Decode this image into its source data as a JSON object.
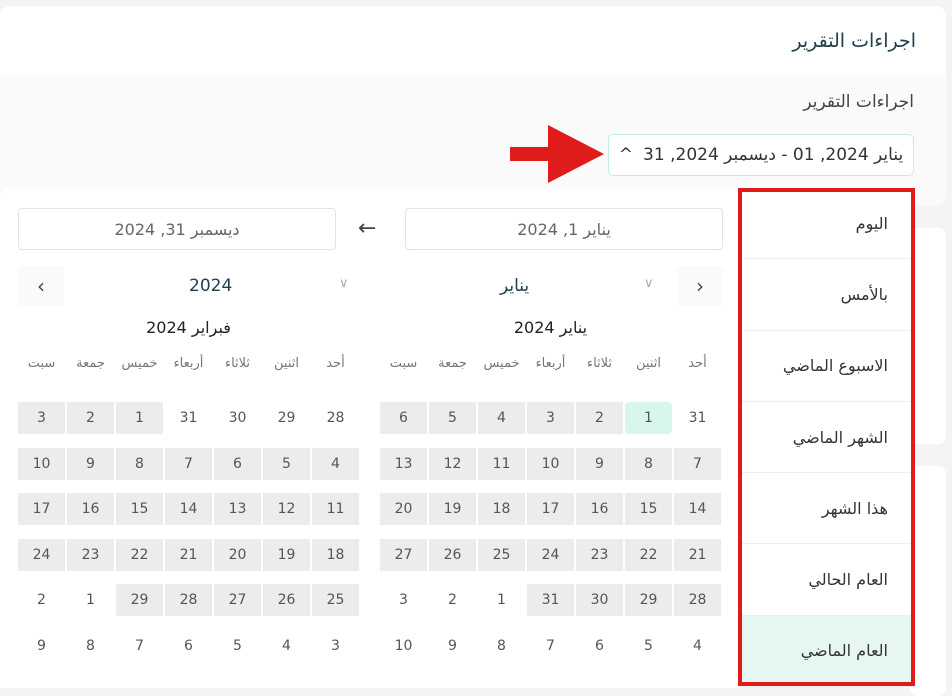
{
  "header": {
    "title": "اجراءات التقرير"
  },
  "filter": {
    "label": "اجراءات التقرير",
    "range_value": "يناير 2024, 01 - ديسمبر 2024, 31",
    "chevron_icon": "chevron-up-icon"
  },
  "annotation": {
    "arrow_color": "#e01b1b",
    "box_color": "#e01b1b"
  },
  "picker": {
    "start_input": "يناير 1, 2024",
    "end_input": "ديسمبر 31, 2024",
    "month_select": "يناير",
    "year_select": "2024",
    "weekdays": [
      "أحد",
      "اثنين",
      "ثلاثاء",
      "أربعاء",
      "خميس",
      "جمعة",
      "سبت"
    ],
    "calendars": [
      {
        "title": "يناير 2024",
        "weeks": [
          [
            {
              "d": "31",
              "s": ""
            },
            {
              "d": "1",
              "s": "selected"
            },
            {
              "d": "2",
              "s": "in"
            },
            {
              "d": "3",
              "s": "in"
            },
            {
              "d": "4",
              "s": "in"
            },
            {
              "d": "5",
              "s": "in"
            },
            {
              "d": "6",
              "s": "in"
            }
          ],
          [
            {
              "d": "7",
              "s": "in"
            },
            {
              "d": "8",
              "s": "in"
            },
            {
              "d": "9",
              "s": "in"
            },
            {
              "d": "10",
              "s": "in"
            },
            {
              "d": "11",
              "s": "in"
            },
            {
              "d": "12",
              "s": "in"
            },
            {
              "d": "13",
              "s": "in"
            }
          ],
          [
            {
              "d": "14",
              "s": "in"
            },
            {
              "d": "15",
              "s": "in"
            },
            {
              "d": "16",
              "s": "in"
            },
            {
              "d": "17",
              "s": "in"
            },
            {
              "d": "18",
              "s": "in"
            },
            {
              "d": "19",
              "s": "in"
            },
            {
              "d": "20",
              "s": "in"
            }
          ],
          [
            {
              "d": "21",
              "s": "in"
            },
            {
              "d": "22",
              "s": "in"
            },
            {
              "d": "23",
              "s": "in"
            },
            {
              "d": "24",
              "s": "in"
            },
            {
              "d": "25",
              "s": "in"
            },
            {
              "d": "26",
              "s": "in"
            },
            {
              "d": "27",
              "s": "in"
            }
          ],
          [
            {
              "d": "28",
              "s": "in"
            },
            {
              "d": "29",
              "s": "in"
            },
            {
              "d": "30",
              "s": "in"
            },
            {
              "d": "31",
              "s": "in"
            },
            {
              "d": "1",
              "s": ""
            },
            {
              "d": "2",
              "s": ""
            },
            {
              "d": "3",
              "s": ""
            }
          ],
          [
            {
              "d": "4",
              "s": ""
            },
            {
              "d": "5",
              "s": ""
            },
            {
              "d": "6",
              "s": ""
            },
            {
              "d": "7",
              "s": ""
            },
            {
              "d": "8",
              "s": ""
            },
            {
              "d": "9",
              "s": ""
            },
            {
              "d": "10",
              "s": ""
            }
          ]
        ]
      },
      {
        "title": "فبراير 2024",
        "weeks": [
          [
            {
              "d": "28",
              "s": ""
            },
            {
              "d": "29",
              "s": ""
            },
            {
              "d": "30",
              "s": ""
            },
            {
              "d": "31",
              "s": ""
            },
            {
              "d": "1",
              "s": "in"
            },
            {
              "d": "2",
              "s": "in"
            },
            {
              "d": "3",
              "s": "in"
            }
          ],
          [
            {
              "d": "4",
              "s": "in"
            },
            {
              "d": "5",
              "s": "in"
            },
            {
              "d": "6",
              "s": "in"
            },
            {
              "d": "7",
              "s": "in"
            },
            {
              "d": "8",
              "s": "in"
            },
            {
              "d": "9",
              "s": "in"
            },
            {
              "d": "10",
              "s": "in"
            }
          ],
          [
            {
              "d": "11",
              "s": "in"
            },
            {
              "d": "12",
              "s": "in"
            },
            {
              "d": "13",
              "s": "in"
            },
            {
              "d": "14",
              "s": "in"
            },
            {
              "d": "15",
              "s": "in"
            },
            {
              "d": "16",
              "s": "in"
            },
            {
              "d": "17",
              "s": "in"
            }
          ],
          [
            {
              "d": "18",
              "s": "in"
            },
            {
              "d": "19",
              "s": "in"
            },
            {
              "d": "20",
              "s": "in"
            },
            {
              "d": "21",
              "s": "in"
            },
            {
              "d": "22",
              "s": "in"
            },
            {
              "d": "23",
              "s": "in"
            },
            {
              "d": "24",
              "s": "in"
            }
          ],
          [
            {
              "d": "25",
              "s": "in"
            },
            {
              "d": "26",
              "s": "in"
            },
            {
              "d": "27",
              "s": "in"
            },
            {
              "d": "28",
              "s": "in"
            },
            {
              "d": "29",
              "s": "in"
            },
            {
              "d": "1",
              "s": ""
            },
            {
              "d": "2",
              "s": ""
            }
          ],
          [
            {
              "d": "3",
              "s": ""
            },
            {
              "d": "4",
              "s": ""
            },
            {
              "d": "5",
              "s": ""
            },
            {
              "d": "6",
              "s": ""
            },
            {
              "d": "7",
              "s": ""
            },
            {
              "d": "8",
              "s": ""
            },
            {
              "d": "9",
              "s": ""
            }
          ]
        ]
      }
    ]
  },
  "presets": [
    {
      "label": "اليوم"
    },
    {
      "label": "بالأمس"
    },
    {
      "label": "الاسبوع الماضي"
    },
    {
      "label": "الشهر الماضي"
    },
    {
      "label": "هذا الشهر"
    },
    {
      "label": "العام الحالي"
    },
    {
      "label": "العام الماضي",
      "active": true
    }
  ]
}
